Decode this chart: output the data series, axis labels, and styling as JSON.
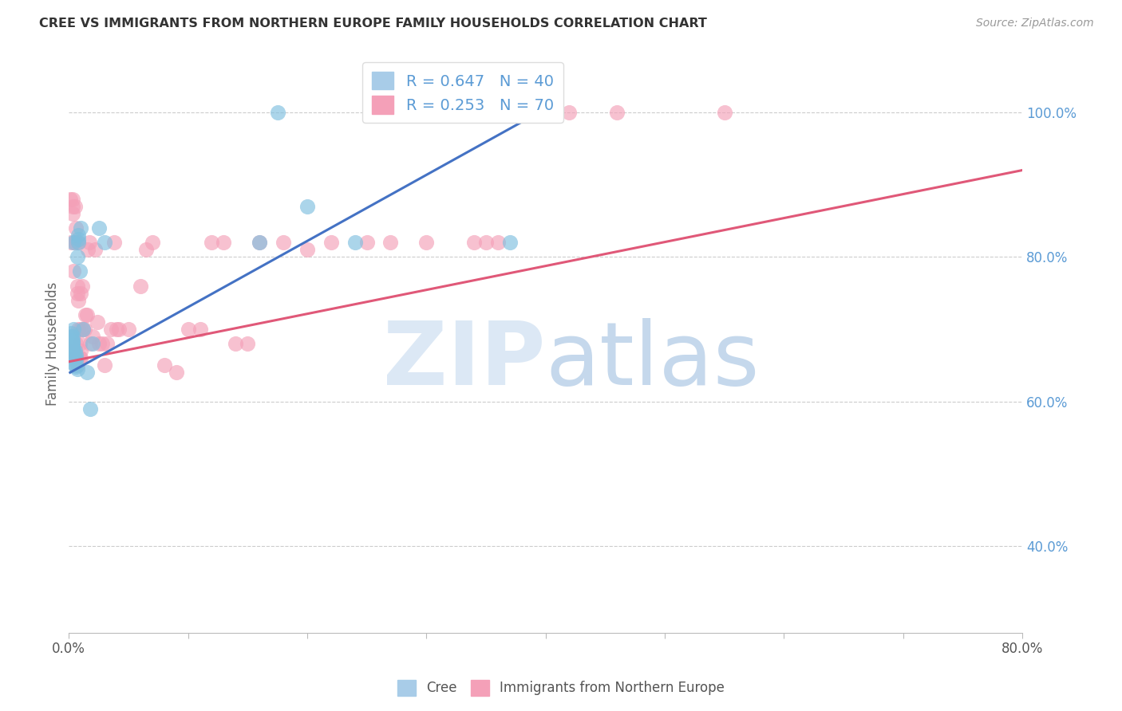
{
  "title": "CREE VS IMMIGRANTS FROM NORTHERN EUROPE FAMILY HOUSEHOLDS CORRELATION CHART",
  "source": "Source: ZipAtlas.com",
  "ylabel": "Family Households",
  "legend_blue_label": "R = 0.647   N = 40",
  "legend_pink_label": "R = 0.253   N = 70",
  "legend_item1": "Cree",
  "legend_item2": "Immigrants from Northern Europe",
  "cree_color": "#7fbfdf",
  "immigrant_color": "#f4a0b8",
  "cree_line_color": "#4472c4",
  "immigrant_line_color": "#e05878",
  "background_color": "#ffffff",
  "cree_x": [
    0.002,
    0.002,
    0.002,
    0.003,
    0.003,
    0.003,
    0.003,
    0.003,
    0.003,
    0.003,
    0.004,
    0.004,
    0.004,
    0.004,
    0.005,
    0.005,
    0.005,
    0.006,
    0.006,
    0.006,
    0.006,
    0.007,
    0.007,
    0.008,
    0.008,
    0.008,
    0.009,
    0.01,
    0.012,
    0.015,
    0.018,
    0.02,
    0.025,
    0.03,
    0.16,
    0.175,
    0.2,
    0.24,
    0.34,
    0.37
  ],
  "cree_y": [
    0.685,
    0.69,
    0.695,
    0.67,
    0.673,
    0.676,
    0.68,
    0.682,
    0.685,
    0.69,
    0.665,
    0.668,
    0.7,
    0.82,
    0.65,
    0.66,
    0.67,
    0.648,
    0.655,
    0.66,
    0.665,
    0.645,
    0.8,
    0.82,
    0.825,
    0.83,
    0.78,
    0.84,
    0.7,
    0.64,
    0.59,
    0.68,
    0.84,
    0.82,
    0.82,
    1.0,
    0.87,
    0.82,
    1.0,
    0.82
  ],
  "imm_x": [
    0.001,
    0.002,
    0.003,
    0.003,
    0.003,
    0.004,
    0.004,
    0.005,
    0.005,
    0.006,
    0.006,
    0.006,
    0.007,
    0.007,
    0.007,
    0.007,
    0.008,
    0.008,
    0.008,
    0.009,
    0.009,
    0.01,
    0.01,
    0.01,
    0.01,
    0.011,
    0.012,
    0.013,
    0.014,
    0.015,
    0.016,
    0.017,
    0.018,
    0.02,
    0.022,
    0.024,
    0.025,
    0.028,
    0.03,
    0.032,
    0.035,
    0.038,
    0.04,
    0.042,
    0.05,
    0.06,
    0.065,
    0.07,
    0.08,
    0.09,
    0.1,
    0.11,
    0.12,
    0.13,
    0.14,
    0.15,
    0.16,
    0.18,
    0.2,
    0.22,
    0.25,
    0.27,
    0.3,
    0.34,
    0.35,
    0.36,
    0.38,
    0.42,
    0.46,
    0.55
  ],
  "imm_y": [
    0.88,
    0.82,
    0.86,
    0.87,
    0.88,
    0.67,
    0.78,
    0.82,
    0.87,
    0.66,
    0.68,
    0.84,
    0.65,
    0.66,
    0.75,
    0.76,
    0.7,
    0.74,
    0.82,
    0.66,
    0.68,
    0.66,
    0.67,
    0.7,
    0.75,
    0.76,
    0.7,
    0.7,
    0.72,
    0.72,
    0.81,
    0.82,
    0.68,
    0.69,
    0.81,
    0.71,
    0.68,
    0.68,
    0.65,
    0.68,
    0.7,
    0.82,
    0.7,
    0.7,
    0.7,
    0.76,
    0.81,
    0.82,
    0.65,
    0.64,
    0.7,
    0.7,
    0.82,
    0.82,
    0.68,
    0.68,
    0.82,
    0.82,
    0.81,
    0.82,
    0.82,
    0.82,
    0.82,
    0.82,
    0.82,
    0.82,
    1.0,
    1.0,
    1.0,
    1.0
  ],
  "xlim": [
    0.0,
    0.8
  ],
  "ylim": [
    0.28,
    1.08
  ],
  "yticks": [
    0.4,
    0.6,
    0.8,
    1.0
  ],
  "xticks": [
    0.0,
    0.1,
    0.2,
    0.3,
    0.4,
    0.5,
    0.6,
    0.7,
    0.8
  ],
  "imm_trend_x": [
    0.0,
    0.8
  ],
  "imm_trend_y": [
    0.655,
    0.92
  ],
  "cree_trend_x": [
    0.001,
    0.4
  ],
  "cree_trend_y": [
    0.64,
    1.005
  ]
}
